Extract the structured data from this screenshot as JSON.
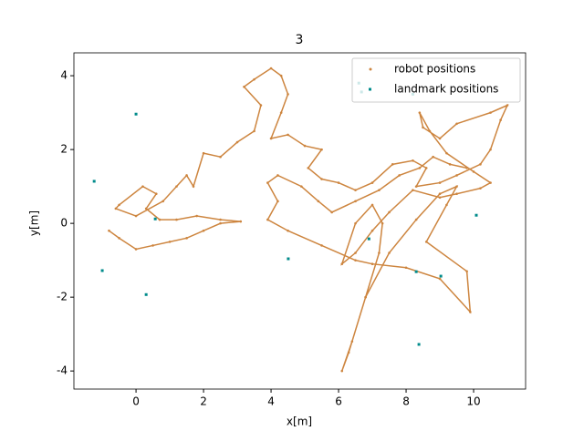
{
  "chart_data": {
    "type": "scatter",
    "title": "3",
    "x_label": "x[m]",
    "y_label": "y[m]",
    "xlim": [
      -1.84,
      11.54
    ],
    "ylim": [
      -4.49,
      4.62
    ],
    "xticks": [
      0,
      2,
      4,
      6,
      8,
      10
    ],
    "yticks": [
      -4,
      -2,
      0,
      2,
      4
    ],
    "legend_position": "upper right",
    "series": [
      {
        "name": "robot positions",
        "color": "#cd853f",
        "marker": "dot",
        "x": [
          -0.8,
          -0.5,
          0,
          0.5,
          1,
          1.5,
          2,
          2.5,
          3.1,
          2.5,
          1.8,
          1.2,
          0.7,
          0.3,
          0.6,
          0.2,
          -0.5,
          -0.6,
          0,
          0.8,
          1.2,
          1.5,
          1.7,
          2,
          2.5,
          3,
          3.5,
          3.7,
          3.2,
          3.5,
          4,
          4.3,
          4.5,
          4.3,
          4,
          4.5,
          5,
          5.5,
          5.1,
          5.5,
          6,
          6.5,
          7,
          7.6,
          8.2,
          8.6,
          8.3,
          9,
          9.5,
          10.2,
          10.5,
          10.8,
          11,
          10.5,
          9.5,
          9,
          8.5,
          8.4,
          8.7,
          9.2,
          10,
          10.5,
          10.2,
          9.5,
          9,
          8.2,
          7.5,
          7,
          6.5,
          6.1,
          6.5,
          7,
          7.3,
          7.2,
          6.8,
          6.4,
          6.1,
          6.3,
          6.8,
          7.5,
          8.3,
          9,
          9.5,
          9.2,
          8.6,
          9.8,
          9.9,
          9,
          8,
          7,
          6.5,
          5.5,
          4.5,
          3.9,
          4.2,
          3.9,
          4.2,
          4.9,
          5.4,
          5.8,
          6.5,
          7.2,
          7.8,
          8.4,
          8.8,
          9.3,
          9.8
        ],
        "y": [
          -0.2,
          -0.4,
          -0.7,
          -0.6,
          -0.5,
          -0.4,
          -0.2,
          0,
          0.05,
          0.1,
          0.2,
          0.1,
          0.1,
          0.4,
          0.8,
          1,
          0.5,
          0.4,
          0.2,
          0.6,
          1,
          1.3,
          1,
          1.9,
          1.8,
          2.2,
          2.5,
          3.2,
          3.7,
          3.9,
          4.2,
          4,
          3.5,
          3,
          2.3,
          2.4,
          2.1,
          2,
          1.5,
          1.2,
          1.1,
          0.9,
          1.1,
          1.6,
          1.7,
          1.5,
          1,
          1.1,
          1.3,
          1.6,
          2,
          2.8,
          3.2,
          3,
          2.7,
          2.3,
          2.6,
          3,
          2.5,
          1.9,
          1.4,
          1.1,
          0.95,
          0.8,
          0.7,
          0.9,
          0.3,
          -0.2,
          -0.8,
          -1.1,
          0,
          0.5,
          0,
          -0.8,
          -2,
          -3.2,
          -4,
          -3.5,
          -2,
          -0.8,
          0.1,
          0.8,
          1,
          0.5,
          -0.5,
          -1.3,
          -2.4,
          -1.5,
          -1.2,
          -1.1,
          -1,
          -0.6,
          -0.2,
          0.1,
          0.6,
          1.1,
          1.3,
          1,
          0.6,
          0.3,
          0.6,
          0.9,
          1.3,
          1.5,
          1.8,
          1.6,
          1.5
        ]
      },
      {
        "name": "landmark positions",
        "color": "#008b8b",
        "marker": "square",
        "x": [
          0,
          -1.24,
          -1,
          0.3,
          4.51,
          8.3,
          8.38,
          10.08,
          0.57,
          6.6,
          6.68,
          6.9,
          9.03,
          8.2
        ],
        "y": [
          2.96,
          1.14,
          -1.28,
          -1.93,
          -0.96,
          -1.31,
          -3.28,
          0.22,
          0.12,
          3.8,
          3.56,
          -0.42,
          -1.43,
          3.5
        ]
      }
    ]
  }
}
